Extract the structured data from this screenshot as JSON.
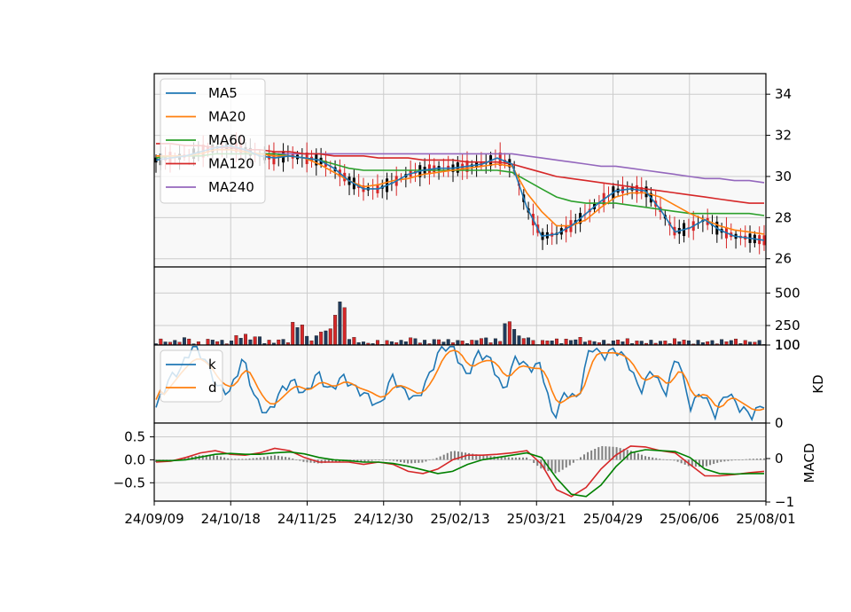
{
  "chart_data": {
    "type": "candlestick",
    "x_tick_labels": [
      "24/09/09",
      "24/10/18",
      "24/11/25",
      "24/12/30",
      "25/02/13",
      "25/03/21",
      "25/04/29",
      "25/06/06",
      "25/08/01"
    ],
    "colors": {
      "up": "#d62728",
      "down": "#000000",
      "ma5": "#1f77b4",
      "ma20": "#ff7f0e",
      "ma60": "#2ca02c",
      "ma120": "#d62728",
      "ma240": "#9467bd",
      "k": "#1f77b4",
      "d": "#ff7f0e",
      "dif": "#d62728",
      "dea": "#008000",
      "hist": "#808080",
      "grid": "#cccccc",
      "panel_bg": "#f8f8f8"
    },
    "panels": {
      "price": {
        "ylim": [
          25.6,
          35.0
        ],
        "yticks": [
          "26",
          "28",
          "30",
          "32",
          "34"
        ],
        "legend": [
          "MA5",
          "MA20",
          "MA60",
          "MA120",
          "MA240"
        ],
        "legend_position": "top-left",
        "grid": true,
        "ma5": [
          30.8,
          30.9,
          31.0,
          31.2,
          31.4,
          31.5,
          31.3,
          31.0,
          30.9,
          31.0,
          30.9,
          30.8,
          30.4,
          29.8,
          29.4,
          29.4,
          29.7,
          30.1,
          30.3,
          30.4,
          30.4,
          30.5,
          30.6,
          30.9,
          30.6,
          28.5,
          27.1,
          27.2,
          27.6,
          28.2,
          28.8,
          29.3,
          29.4,
          29.3,
          28.4,
          27.3,
          27.5,
          27.9,
          27.4,
          27.1,
          27.0,
          26.9
        ],
        "ma20": [
          31.0,
          31.0,
          31.0,
          31.1,
          31.3,
          31.3,
          31.2,
          31.1,
          31.0,
          31.0,
          30.9,
          30.6,
          30.2,
          29.8,
          29.5,
          29.6,
          29.8,
          29.9,
          30.1,
          30.2,
          30.3,
          30.4,
          30.5,
          30.6,
          30.5,
          29.2,
          28.3,
          27.6,
          27.6,
          27.9,
          28.5,
          29.0,
          29.2,
          29.2,
          29.0,
          28.6,
          28.2,
          27.9,
          27.6,
          27.4,
          27.3,
          27.2
        ],
        "ma60": [
          30.9,
          31.0,
          31.0,
          31.0,
          31.1,
          31.1,
          31.1,
          31.1,
          31.1,
          31.0,
          30.9,
          30.8,
          30.6,
          30.4,
          30.3,
          30.3,
          30.3,
          30.3,
          30.3,
          30.3,
          30.3,
          30.3,
          30.3,
          30.3,
          30.2,
          29.8,
          29.4,
          29.0,
          28.8,
          28.7,
          28.7,
          28.7,
          28.6,
          28.5,
          28.4,
          28.3,
          28.2,
          28.2,
          28.2,
          28.2,
          28.2,
          28.1
        ],
        "ma120": [
          31.6,
          31.6,
          31.5,
          31.5,
          31.4,
          31.4,
          31.3,
          31.3,
          31.2,
          31.2,
          31.1,
          31.1,
          31.0,
          31.0,
          31.0,
          30.9,
          30.9,
          30.9,
          30.8,
          30.8,
          30.8,
          30.7,
          30.7,
          30.7,
          30.6,
          30.4,
          30.2,
          30.0,
          29.9,
          29.8,
          29.7,
          29.6,
          29.5,
          29.4,
          29.3,
          29.2,
          29.1,
          29.0,
          28.9,
          28.8,
          28.7,
          28.7
        ],
        "ma240": [
          null,
          null,
          null,
          null,
          null,
          31.1,
          31.1,
          31.1,
          31.1,
          31.1,
          31.1,
          31.1,
          31.1,
          31.1,
          31.1,
          31.1,
          31.1,
          31.1,
          31.1,
          31.1,
          31.1,
          31.1,
          31.1,
          31.1,
          31.1,
          31.0,
          30.9,
          30.8,
          30.7,
          30.6,
          30.5,
          30.5,
          30.4,
          30.3,
          30.2,
          30.1,
          30.0,
          29.9,
          29.9,
          29.8,
          29.8,
          29.7
        ]
      },
      "volume": {
        "ylim": [
          100,
          700
        ],
        "yticks": [
          "100",
          "250",
          "500"
        ],
        "values": [
          130,
          120,
          140,
          110,
          130,
          120,
          160,
          150,
          120,
          130,
          240,
          150,
          200,
          380,
          140,
          110,
          120,
          120,
          140,
          120,
          130,
          125,
          120,
          140,
          130,
          250,
          150,
          120,
          130,
          130,
          140,
          120,
          120,
          130,
          120,
          120,
          120,
          130,
          120,
          120,
          125,
          130,
          120,
          120
        ],
        "up": [
          true,
          false,
          true,
          false,
          true,
          false,
          true,
          false,
          false,
          true,
          true,
          false,
          true,
          true,
          false,
          false,
          true,
          false,
          false,
          true,
          false,
          false,
          true,
          false,
          true,
          false,
          false,
          true,
          true,
          false,
          false,
          true,
          false,
          true,
          false,
          true,
          false,
          true,
          false,
          false,
          true,
          false,
          true,
          false
        ]
      },
      "kd": {
        "ylim": [
          0,
          100
        ],
        "yticks": [
          "0",
          "100"
        ],
        "ylabel": "KD",
        "legend": [
          "k",
          "d"
        ],
        "k": [
          20,
          55,
          70,
          100,
          80,
          45,
          40,
          85,
          30,
          10,
          40,
          55,
          35,
          65,
          40,
          60,
          45,
          35,
          20,
          60,
          40,
          30,
          60,
          100,
          95,
          60,
          90,
          80,
          40,
          85,
          70,
          75,
          5,
          40,
          30,
          100,
          85,
          95,
          80,
          40,
          70,
          35,
          90,
          20,
          40,
          10,
          40,
          20,
          10,
          25
        ],
        "d": [
          30,
          50,
          70,
          85,
          75,
          50,
          45,
          75,
          40,
          20,
          35,
          50,
          40,
          55,
          45,
          55,
          45,
          40,
          30,
          50,
          45,
          35,
          55,
          90,
          95,
          70,
          80,
          80,
          55,
          75,
          70,
          70,
          20,
          35,
          35,
          90,
          90,
          90,
          80,
          50,
          65,
          45,
          75,
          30,
          40,
          15,
          35,
          25,
          15,
          20
        ]
      },
      "macd": {
        "ylim": [
          -0.9,
          0.8
        ],
        "yticks_left": [
          "0.5",
          "0.0",
          "−0.5"
        ],
        "yticks_right": [
          "0",
          "−1"
        ],
        "ylabel": "MACD",
        "dif": [
          -0.05,
          -0.03,
          0.05,
          0.15,
          0.2,
          0.12,
          0.1,
          0.15,
          0.25,
          0.2,
          0.05,
          -0.05,
          -0.05,
          -0.05,
          -0.1,
          -0.05,
          -0.1,
          -0.25,
          -0.3,
          -0.2,
          0.0,
          0.1,
          0.1,
          0.12,
          0.15,
          0.2,
          -0.1,
          -0.65,
          -0.8,
          -0.6,
          -0.2,
          0.1,
          0.3,
          0.28,
          0.2,
          0.15,
          -0.1,
          -0.35,
          -0.35,
          -0.32,
          -0.28,
          -0.25
        ],
        "dea": [
          -0.02,
          -0.02,
          0.0,
          0.06,
          0.12,
          0.14,
          0.12,
          0.12,
          0.15,
          0.17,
          0.13,
          0.05,
          0.0,
          -0.02,
          -0.05,
          -0.05,
          -0.08,
          -0.14,
          -0.22,
          -0.3,
          -0.25,
          -0.1,
          0.0,
          0.05,
          0.1,
          0.15,
          0.05,
          -0.4,
          -0.75,
          -0.8,
          -0.55,
          -0.15,
          0.15,
          0.22,
          0.2,
          0.18,
          0.05,
          -0.2,
          -0.3,
          -0.31,
          -0.3,
          -0.3
        ],
        "hist": [
          -0.05,
          -0.04,
          0.05,
          0.1,
          0.1,
          0.02,
          0.02,
          0.05,
          0.1,
          0.05,
          -0.05,
          -0.08,
          -0.05,
          -0.02,
          -0.05,
          0.0,
          -0.02,
          -0.08,
          -0.06,
          0.05,
          0.2,
          0.15,
          0.1,
          0.07,
          0.05,
          0.05,
          -0.2,
          -0.3,
          -0.1,
          0.15,
          0.3,
          0.28,
          0.2,
          0.08,
          0.02,
          -0.02,
          -0.15,
          -0.15,
          -0.05,
          -0.01,
          0.02,
          0.03
        ]
      }
    }
  }
}
